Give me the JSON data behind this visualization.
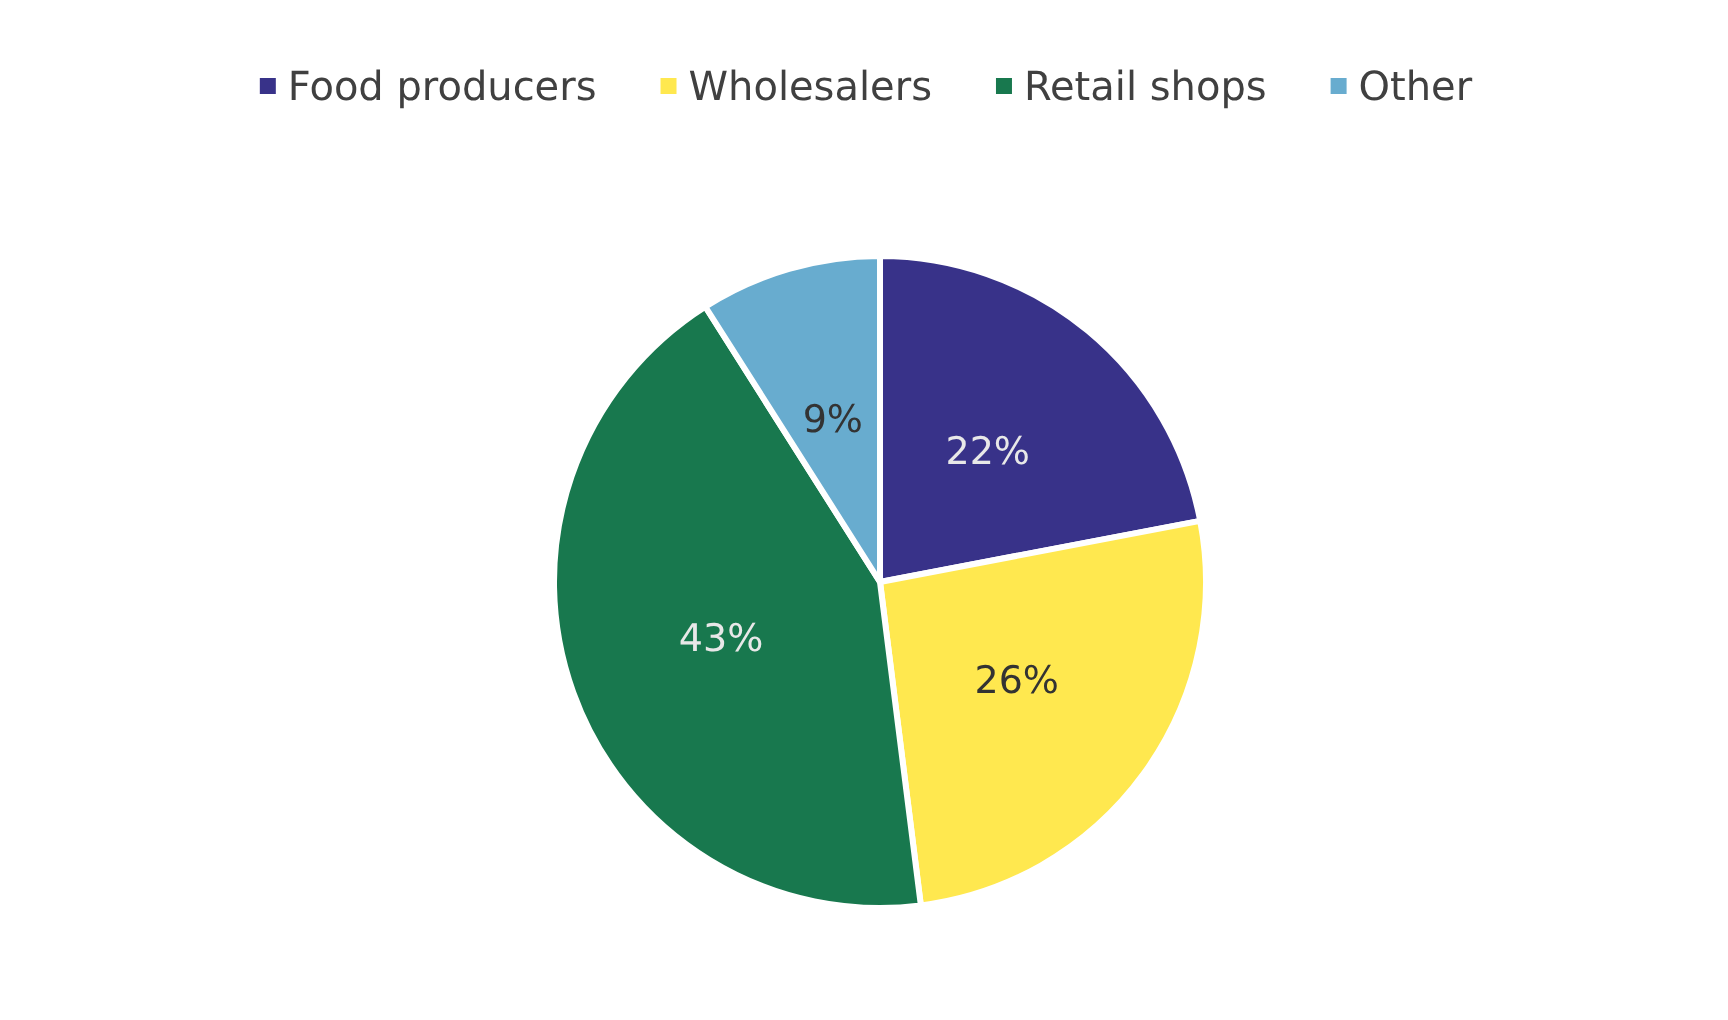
{
  "chart_data": {
    "type": "pie",
    "categories": [
      "Food producers",
      "Wholesalers",
      "Retail shops",
      "Other"
    ],
    "values": [
      22,
      26,
      43,
      9
    ],
    "colors": [
      "#383289",
      "#ffe84f",
      "#18784e",
      "#68accf"
    ],
    "value_labels": [
      "22%",
      "26%",
      "43%",
      "9%"
    ],
    "legend": "top"
  }
}
